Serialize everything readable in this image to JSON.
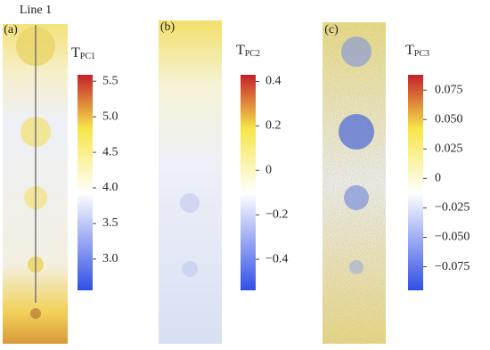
{
  "chart_data": [
    {
      "type": "heatmap",
      "panel_label": "(a)",
      "annotation": "Line 1",
      "colorbar_title": {
        "base": "T",
        "sub": "PC1"
      },
      "clim": [
        2.56,
        5.59
      ],
      "cticks": [
        {
          "value": 3,
          "label": "3.0"
        },
        3.5,
        {
          "value": 4,
          "label": "4.0"
        },
        4.5,
        {
          "value": 5,
          "label": "5.0"
        },
        5.5
      ]
    },
    {
      "type": "heatmap",
      "panel_label": "(b)",
      "colorbar_title": {
        "base": "T",
        "sub": "PC2"
      },
      "clim": [
        -0.54,
        0.43
      ],
      "cticks": [
        {
          "value": -0.4,
          "label": "−0.4"
        },
        {
          "value": -0.2,
          "label": "−0.2"
        },
        0,
        0.2,
        0.4
      ]
    },
    {
      "type": "heatmap",
      "panel_label": "(c)",
      "colorbar_title": {
        "base": "T",
        "sub": "PC3"
      },
      "clim": [
        -0.095,
        0.088
      ],
      "cticks": [
        {
          "value": -0.075,
          "label": "−0.075"
        },
        {
          "value": -0.05,
          "label": "−0.050"
        },
        {
          "value": -0.025,
          "label": "−0.025"
        },
        0,
        0.025,
        {
          "value": 0.05,
          "label": "0.050"
        },
        0.075
      ]
    }
  ]
}
